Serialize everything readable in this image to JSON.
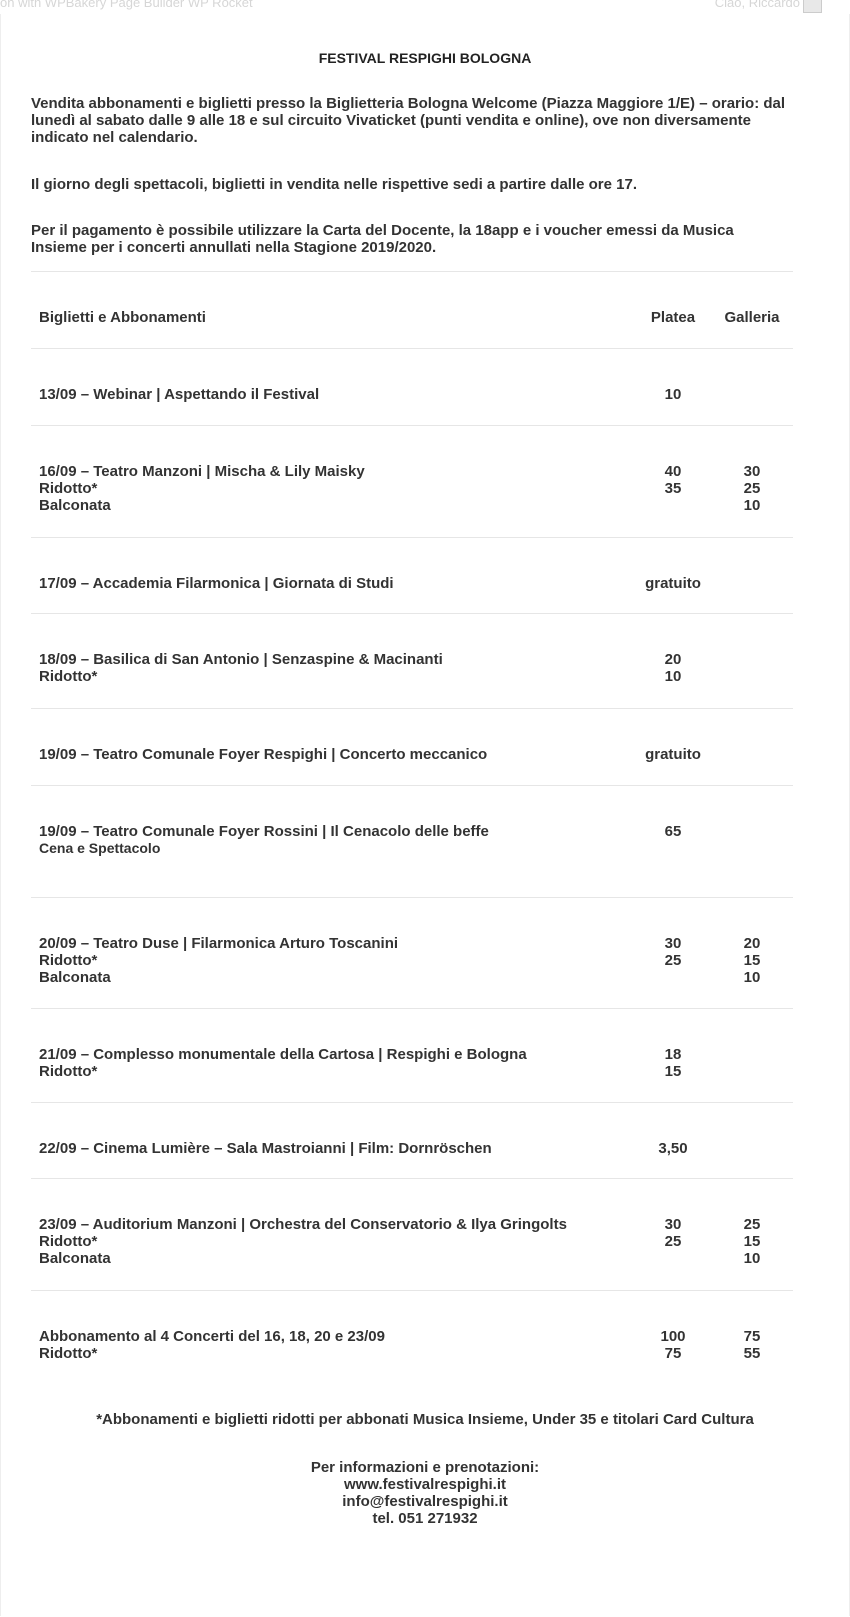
{
  "topbar": {
    "left": "on with WPBakery Page Builder    WP Rocket",
    "right": "Ciao, Riccardo"
  },
  "title": "FESTIVAL RESPIGHI BOLOGNA",
  "paragraphs": [
    "Vendita abbonamenti e biglietti presso la Biglietteria Bologna Welcome (Piazza Maggiore 1/E) – orario: dal lunedì al sabato dalle 9 alle 18 e sul circuito Vivaticket (punti vendita e online), ove non diversamente indicato nel calendario.",
    "Il giorno degli spettacoli, biglietti in vendita nelle rispettive sedi a partire dalle ore 17.",
    "Per il pagamento è possibile utilizzare la Carta del Docente, la 18app e i voucher emessi da Musica Insieme per i concerti annullati nella Stagione 2019/2020."
  ],
  "table": {
    "header": {
      "label": "Biglietti e Abbonamenti",
      "platea": "Platea",
      "galleria": "Galleria"
    },
    "rows": [
      {
        "lines": [
          {
            "label": "13/09 – Webinar | Aspettando il Festival",
            "platea": "10",
            "galleria": ""
          }
        ]
      },
      {
        "lines": [
          {
            "label": "16/09 – Teatro Manzoni | Mischa & Lily Maisky",
            "platea": "40",
            "galleria": "30"
          },
          {
            "label": "Ridotto*",
            "platea": "35",
            "galleria": "25"
          },
          {
            "label": "Balconata",
            "platea": "",
            "galleria": "10"
          }
        ]
      },
      {
        "lines": [
          {
            "label": "17/09 – Accademia Filarmonica | Giornata di Studi",
            "platea": "gratuito",
            "galleria": ""
          }
        ]
      },
      {
        "lines": [
          {
            "label": "18/09 – Basilica di San Antonio | Senzaspine & Macinanti",
            "platea": "20",
            "galleria": ""
          },
          {
            "label": "Ridotto*",
            "platea": "10",
            "galleria": ""
          }
        ]
      },
      {
        "lines": [
          {
            "label": "19/09 – Teatro Comunale Foyer Respighi | Concerto meccanico",
            "platea": "gratuito",
            "galleria": ""
          }
        ]
      },
      {
        "lines": [
          {
            "label": "19/09 – Teatro Comunale Foyer Rossini | Il Cenacolo delle beffe",
            "platea": "65",
            "galleria": ""
          },
          {
            "label": "Cena e Spettacolo",
            "platea": "",
            "galleria": "",
            "sub": true
          }
        ]
      },
      {
        "lines": [
          {
            "label": "20/09 – Teatro Duse | Filarmonica Arturo Toscanini",
            "platea": "30",
            "galleria": "20"
          },
          {
            "label": "Ridotto*",
            "platea": "25",
            "galleria": "15"
          },
          {
            "label": "Balconata",
            "platea": "",
            "galleria": "10"
          }
        ]
      },
      {
        "lines": [
          {
            "label": "21/09 – Complesso monumentale della Cartosa | Respighi e Bologna",
            "platea": "18",
            "galleria": ""
          },
          {
            "label": "Ridotto*",
            "platea": "15",
            "galleria": ""
          }
        ]
      },
      {
        "lines": [
          {
            "label": "22/09 – Cinema Lumière – Sala Mastroianni | Film: Dornröschen",
            "platea": "3,50",
            "galleria": ""
          }
        ]
      },
      {
        "lines": [
          {
            "label": "23/09 – Auditorium Manzoni | Orchestra del Conservatorio & Ilya Gringolts",
            "platea": "30",
            "galleria": "25"
          },
          {
            "label": "Ridotto*",
            "platea": "25",
            "galleria": "15"
          },
          {
            "label": "Balconata",
            "platea": "",
            "galleria": "10"
          }
        ]
      },
      {
        "lines": [
          {
            "label": "Abbonamento al 4 Concerti del 16, 18, 20 e 23/09",
            "platea": "100",
            "galleria": "75"
          },
          {
            "label": "Ridotto*",
            "platea": "75",
            "galleria": "55"
          }
        ]
      }
    ]
  },
  "note": "*Abbonamenti e biglietti ridotti per abbonati Musica Insieme, Under 35 e titolari Card Cultura",
  "info": [
    "Per informazioni e prenotazioni:",
    "www.festivalrespighi.it",
    "info@festivalrespighi.it",
    "tel. 051 271932"
  ]
}
